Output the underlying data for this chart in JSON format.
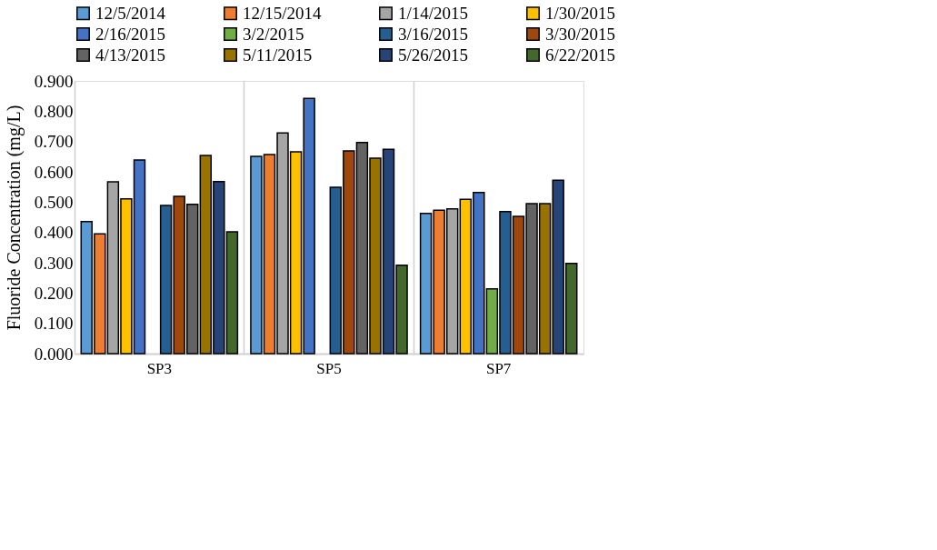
{
  "chart_data": {
    "type": "bar",
    "ylabel": "Fluoride Concentration (mg/L)",
    "categories": [
      "SP3",
      "SP5",
      "SP7"
    ],
    "series": [
      {
        "name": "12/5/2014",
        "color": "#5b9bd5",
        "values": [
          0.436,
          0.651,
          0.463
        ]
      },
      {
        "name": "12/15/2014",
        "color": "#ed7d31",
        "values": [
          0.395,
          0.657,
          0.473
        ]
      },
      {
        "name": "1/14/2015",
        "color": "#a5a5a5",
        "values": [
          0.567,
          0.728,
          0.478
        ]
      },
      {
        "name": "1/30/2015",
        "color": "#ffc000",
        "values": [
          0.511,
          0.666,
          0.509
        ]
      },
      {
        "name": "2/16/2015",
        "color": "#4472c4",
        "values": [
          0.639,
          0.842,
          0.532
        ]
      },
      {
        "name": "3/2/2015",
        "color": "#70ad47",
        "values": [
          null,
          null,
          0.214
        ]
      },
      {
        "name": "3/16/2015",
        "color": "#255e91",
        "values": [
          0.489,
          0.549,
          0.469
        ]
      },
      {
        "name": "3/30/2015",
        "color": "#9e480e",
        "values": [
          0.519,
          0.669,
          0.453
        ]
      },
      {
        "name": "4/13/2015",
        "color": "#636363",
        "values": [
          0.493,
          0.697,
          0.495
        ]
      },
      {
        "name": "5/11/2015",
        "color": "#997300",
        "values": [
          0.654,
          0.645,
          0.495
        ]
      },
      {
        "name": "5/26/2015",
        "color": "#264478",
        "values": [
          0.568,
          0.674,
          0.572
        ]
      },
      {
        "name": "6/22/2015",
        "color": "#43682b",
        "values": [
          0.402,
          0.292,
          0.298
        ]
      }
    ],
    "ylim": [
      0,
      0.9
    ],
    "yticks": [
      {
        "value": 0,
        "label": "0.000"
      },
      {
        "value": 0.1,
        "label": "0.100"
      },
      {
        "value": 0.2,
        "label": "0.200"
      },
      {
        "value": 0.3,
        "label": "0.300"
      },
      {
        "value": 0.4,
        "label": "0.400"
      },
      {
        "value": 0.5,
        "label": "0.500"
      },
      {
        "value": 0.6,
        "label": "0.600"
      },
      {
        "value": 0.7,
        "label": "0.700"
      },
      {
        "value": 0.8,
        "label": "0.800"
      },
      {
        "value": 0.9,
        "label": "0.900"
      }
    ],
    "grid": "x",
    "legend": "top"
  }
}
